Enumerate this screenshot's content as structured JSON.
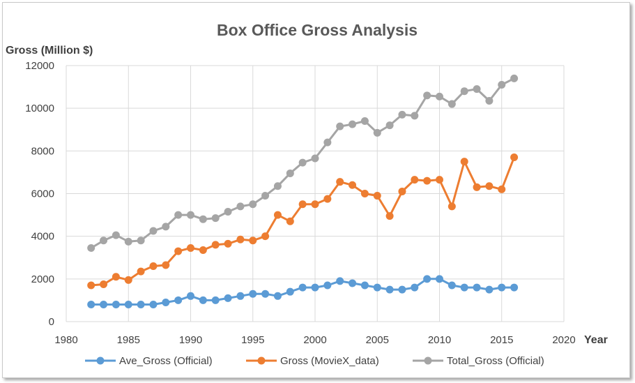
{
  "chart_data": {
    "type": "line",
    "title": "Box Office Gross Analysis",
    "ylabel": "Gross (Million $)",
    "xlabel": "Year",
    "xlim": [
      1980,
      2020
    ],
    "ylim": [
      0,
      12000
    ],
    "xticks": [
      1980,
      1985,
      1990,
      1995,
      2000,
      2005,
      2010,
      2015,
      2020
    ],
    "yticks": [
      0,
      2000,
      4000,
      6000,
      8000,
      10000,
      12000
    ],
    "grid": true,
    "legend_position": "bottom",
    "x": [
      1982,
      1983,
      1984,
      1985,
      1986,
      1987,
      1988,
      1989,
      1990,
      1991,
      1992,
      1993,
      1994,
      1995,
      1996,
      1997,
      1998,
      1999,
      2000,
      2001,
      2002,
      2003,
      2004,
      2005,
      2006,
      2007,
      2008,
      2009,
      2010,
      2011,
      2012,
      2013,
      2014,
      2015,
      2016
    ],
    "series": [
      {
        "name": "Ave_Gross (Official)",
        "color": "#5b9bd5",
        "values": [
          800,
          800,
          800,
          800,
          800,
          800,
          900,
          1000,
          1200,
          1000,
          1000,
          1100,
          1200,
          1300,
          1300,
          1200,
          1400,
          1600,
          1600,
          1700,
          1900,
          1800,
          1700,
          1600,
          1500,
          1500,
          1600,
          2000,
          2000,
          1700,
          1600,
          1600,
          1500,
          1600,
          1600
        ]
      },
      {
        "name": "Gross (MovieX_data)",
        "color": "#ed7d31",
        "values": [
          1700,
          1750,
          2100,
          1950,
          2350,
          2600,
          2650,
          3300,
          3450,
          3350,
          3600,
          3650,
          3850,
          3800,
          4000,
          5000,
          4700,
          5500,
          5500,
          5750,
          6550,
          6400,
          6000,
          5900,
          4950,
          6100,
          6650,
          6600,
          6650,
          5400,
          7500,
          6300,
          6350,
          6200,
          7700
        ]
      },
      {
        "name": "Total_Gross (Official)",
        "color": "#a5a5a5",
        "values": [
          3450,
          3800,
          4050,
          3750,
          3800,
          4250,
          4450,
          5000,
          5000,
          4800,
          4850,
          5150,
          5400,
          5500,
          5900,
          6350,
          6950,
          7450,
          7650,
          8400,
          9150,
          9250,
          9400,
          8850,
          9200,
          9700,
          9650,
          10600,
          10550,
          10200,
          10800,
          10900,
          10350,
          11100,
          11400
        ]
      }
    ]
  }
}
